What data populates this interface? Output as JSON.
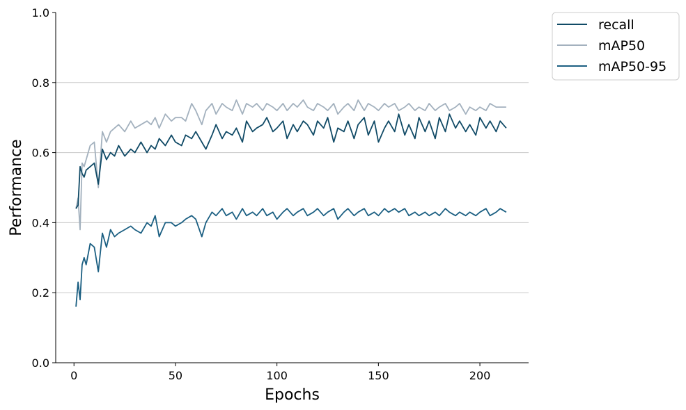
{
  "chart_data": {
    "type": "line",
    "xlabel": "Epochs",
    "ylabel": "Performance",
    "xlim": [
      -9,
      224
    ],
    "ylim": [
      0.0,
      1.0
    ],
    "xticks": [
      0,
      50,
      100,
      150,
      200
    ],
    "yticks": [
      0.0,
      0.2,
      0.4,
      0.6,
      0.8,
      1.0
    ],
    "xtick_labels": [
      "0",
      "50",
      "100",
      "150",
      "200"
    ],
    "ytick_labels": [
      "0.0",
      "0.2",
      "0.4",
      "0.6",
      "0.8",
      "1.0"
    ],
    "grid": "horizontal",
    "legend": "outside-top-right",
    "colors": {
      "recall": "#104a66",
      "mAP50": "#a3b1be",
      "mAP50-95": "#1b5f82"
    },
    "series": [
      {
        "name": "recall",
        "x": [
          1,
          2,
          3,
          4,
          5,
          6,
          8,
          10,
          12,
          14,
          16,
          18,
          20,
          22,
          25,
          28,
          30,
          33,
          36,
          38,
          40,
          42,
          45,
          48,
          50,
          53,
          55,
          58,
          60,
          63,
          65,
          68,
          70,
          73,
          75,
          78,
          80,
          83,
          85,
          88,
          90,
          93,
          95,
          98,
          100,
          103,
          105,
          108,
          110,
          113,
          115,
          118,
          120,
          123,
          125,
          128,
          130,
          133,
          135,
          138,
          140,
          143,
          145,
          148,
          150,
          153,
          155,
          158,
          160,
          163,
          165,
          168,
          170,
          173,
          175,
          178,
          180,
          183,
          185,
          188,
          190,
          193,
          195,
          198,
          200,
          203,
          205,
          208,
          210,
          213
        ],
        "values": [
          0.44,
          0.45,
          0.56,
          0.54,
          0.53,
          0.55,
          0.56,
          0.57,
          0.51,
          0.61,
          0.58,
          0.6,
          0.59,
          0.62,
          0.59,
          0.61,
          0.6,
          0.63,
          0.6,
          0.62,
          0.61,
          0.64,
          0.62,
          0.65,
          0.63,
          0.62,
          0.65,
          0.64,
          0.66,
          0.63,
          0.61,
          0.65,
          0.68,
          0.64,
          0.66,
          0.65,
          0.67,
          0.63,
          0.69,
          0.66,
          0.67,
          0.68,
          0.7,
          0.66,
          0.67,
          0.69,
          0.64,
          0.68,
          0.66,
          0.69,
          0.68,
          0.65,
          0.69,
          0.67,
          0.7,
          0.63,
          0.67,
          0.66,
          0.69,
          0.64,
          0.68,
          0.7,
          0.65,
          0.69,
          0.63,
          0.67,
          0.69,
          0.66,
          0.71,
          0.65,
          0.68,
          0.64,
          0.7,
          0.66,
          0.69,
          0.64,
          0.7,
          0.66,
          0.71,
          0.67,
          0.69,
          0.66,
          0.68,
          0.65,
          0.7,
          0.67,
          0.69,
          0.66,
          0.69,
          0.67
        ]
      },
      {
        "name": "mAP50",
        "x": [
          1,
          2,
          3,
          4,
          5,
          6,
          8,
          10,
          12,
          14,
          16,
          18,
          20,
          22,
          25,
          28,
          30,
          33,
          36,
          38,
          40,
          42,
          45,
          48,
          50,
          53,
          55,
          58,
          60,
          63,
          65,
          68,
          70,
          73,
          75,
          78,
          80,
          83,
          85,
          88,
          90,
          93,
          95,
          98,
          100,
          103,
          105,
          108,
          110,
          113,
          115,
          118,
          120,
          123,
          125,
          128,
          130,
          133,
          135,
          138,
          140,
          143,
          145,
          148,
          150,
          153,
          155,
          158,
          160,
          163,
          165,
          168,
          170,
          173,
          175,
          178,
          180,
          183,
          185,
          188,
          190,
          193,
          195,
          198,
          200,
          203,
          205,
          208,
          210,
          213
        ],
        "values": [
          0.44,
          0.47,
          0.38,
          0.57,
          0.56,
          0.58,
          0.62,
          0.63,
          0.5,
          0.66,
          0.63,
          0.66,
          0.67,
          0.68,
          0.66,
          0.69,
          0.67,
          0.68,
          0.69,
          0.68,
          0.7,
          0.67,
          0.71,
          0.69,
          0.7,
          0.7,
          0.69,
          0.74,
          0.72,
          0.68,
          0.72,
          0.74,
          0.71,
          0.74,
          0.73,
          0.72,
          0.75,
          0.71,
          0.74,
          0.73,
          0.74,
          0.72,
          0.74,
          0.73,
          0.72,
          0.74,
          0.72,
          0.74,
          0.73,
          0.75,
          0.73,
          0.72,
          0.74,
          0.73,
          0.72,
          0.74,
          0.71,
          0.73,
          0.74,
          0.72,
          0.75,
          0.72,
          0.74,
          0.73,
          0.72,
          0.74,
          0.73,
          0.74,
          0.72,
          0.73,
          0.74,
          0.72,
          0.73,
          0.72,
          0.74,
          0.72,
          0.73,
          0.74,
          0.72,
          0.73,
          0.74,
          0.71,
          0.73,
          0.72,
          0.73,
          0.72,
          0.74,
          0.73,
          0.73,
          0.73
        ]
      },
      {
        "name": "mAP50-95",
        "x": [
          1,
          2,
          3,
          4,
          5,
          6,
          8,
          10,
          12,
          14,
          16,
          18,
          20,
          22,
          25,
          28,
          30,
          33,
          36,
          38,
          40,
          42,
          45,
          48,
          50,
          53,
          55,
          58,
          60,
          63,
          65,
          68,
          70,
          73,
          75,
          78,
          80,
          83,
          85,
          88,
          90,
          93,
          95,
          98,
          100,
          103,
          105,
          108,
          110,
          113,
          115,
          118,
          120,
          123,
          125,
          128,
          130,
          133,
          135,
          138,
          140,
          143,
          145,
          148,
          150,
          153,
          155,
          158,
          160,
          163,
          165,
          168,
          170,
          173,
          175,
          178,
          180,
          183,
          185,
          188,
          190,
          193,
          195,
          198,
          200,
          203,
          205,
          208,
          210,
          213
        ],
        "values": [
          0.16,
          0.23,
          0.18,
          0.28,
          0.3,
          0.28,
          0.34,
          0.33,
          0.26,
          0.37,
          0.33,
          0.38,
          0.36,
          0.37,
          0.38,
          0.39,
          0.38,
          0.37,
          0.4,
          0.39,
          0.42,
          0.36,
          0.4,
          0.4,
          0.39,
          0.4,
          0.41,
          0.42,
          0.41,
          0.36,
          0.4,
          0.43,
          0.42,
          0.44,
          0.42,
          0.43,
          0.41,
          0.44,
          0.42,
          0.43,
          0.42,
          0.44,
          0.42,
          0.43,
          0.41,
          0.43,
          0.44,
          0.42,
          0.43,
          0.44,
          0.42,
          0.43,
          0.44,
          0.42,
          0.43,
          0.44,
          0.41,
          0.43,
          0.44,
          0.42,
          0.43,
          0.44,
          0.42,
          0.43,
          0.42,
          0.44,
          0.43,
          0.44,
          0.43,
          0.44,
          0.42,
          0.43,
          0.42,
          0.43,
          0.42,
          0.43,
          0.42,
          0.44,
          0.43,
          0.42,
          0.43,
          0.42,
          0.43,
          0.42,
          0.43,
          0.44,
          0.42,
          0.43,
          0.44,
          0.43
        ]
      }
    ]
  }
}
